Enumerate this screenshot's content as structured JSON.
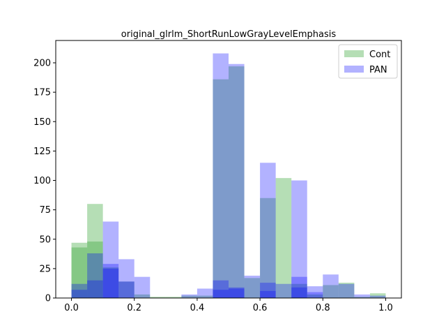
{
  "chart_data": {
    "type": "bar",
    "title": "original_glrlm_ShortRunLowGrayLevelEmphasis",
    "xlabel": "",
    "ylabel": "",
    "xlim": [
      -0.05,
      1.05
    ],
    "ylim": [
      0,
      219
    ],
    "x_ticks": [
      0.0,
      0.2,
      0.4,
      0.6,
      0.8,
      1.0
    ],
    "x_tick_labels": [
      "0.0",
      "0.2",
      "0.4",
      "0.6",
      "0.8",
      "1.0"
    ],
    "y_ticks": [
      0,
      25,
      50,
      75,
      100,
      125,
      150,
      175,
      200
    ],
    "y_tick_labels": [
      "0",
      "25",
      "50",
      "75",
      "100",
      "125",
      "150",
      "175",
      "200"
    ],
    "grid": false,
    "legend_position": "top-right",
    "bin_width": 0.05,
    "series": [
      {
        "name": "Cont",
        "color": "#2ca02c",
        "opacity": 0.35,
        "layers": [
          {
            "x": [
              0.0,
              0.05,
              0.1,
              0.15,
              0.2,
              0.25,
              0.3,
              0.35,
              0.4,
              0.45,
              0.5,
              0.55,
              0.6,
              0.65,
              0.7,
              0.75,
              0.8,
              0.85,
              0.9,
              0.95
            ],
            "values": [
              47,
              80,
              26,
              14,
              3,
              1,
              1,
              2,
              2,
              186,
              197,
              17,
              85,
              102,
              12,
              3,
              11,
              13,
              1,
              4
            ]
          },
          {
            "x": [
              0.0,
              0.05
            ],
            "values": [
              43,
              48
            ]
          }
        ]
      },
      {
        "name": "PAN",
        "color": "#0000ff",
        "opacity": 0.3,
        "layers": [
          {
            "x": [
              0.0,
              0.05,
              0.1,
              0.15,
              0.2,
              0.25,
              0.3,
              0.35,
              0.4,
              0.45,
              0.5,
              0.55,
              0.6,
              0.65,
              0.7,
              0.75,
              0.8,
              0.85,
              0.9,
              0.95
            ],
            "values": [
              12,
              38,
              65,
              33,
              18,
              0,
              0,
              3,
              8,
              208,
              199,
              19,
              115,
              12,
              100,
              10,
              20,
              12,
              3,
              2
            ]
          },
          {
            "x": [
              0.0,
              0.05,
              0.1,
              0.15,
              0.45,
              0.5,
              0.6,
              0.7,
              0.75
            ],
            "values": [
              7,
              15,
              29,
              14,
              15,
              9,
              13,
              18,
              5
            ]
          },
          {
            "x": [
              0.1,
              0.45,
              0.5,
              0.6,
              0.7
            ],
            "values": [
              25,
              7,
              8,
              6,
              9
            ]
          }
        ]
      }
    ]
  }
}
